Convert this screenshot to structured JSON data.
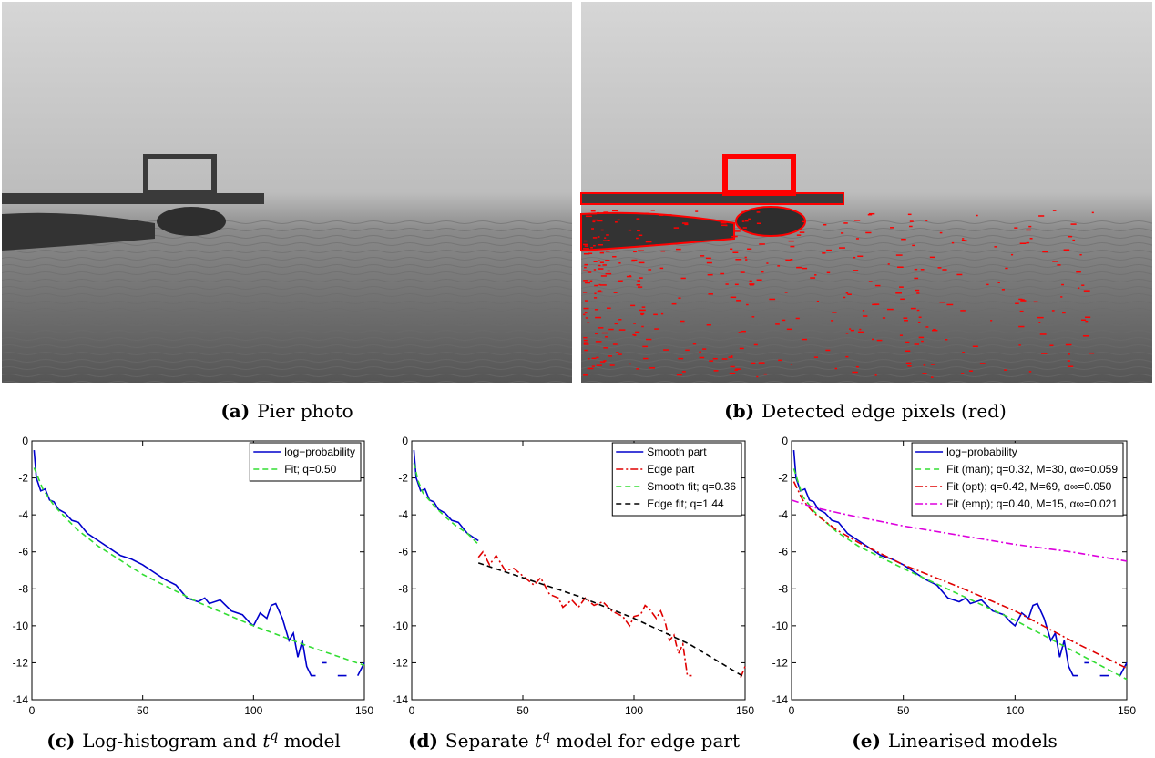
{
  "photos": [
    {
      "label": "(a)",
      "caption": "Pier photo"
    },
    {
      "label": "(b)",
      "caption": "Detected edge pixels (red)"
    }
  ],
  "chart_data": [
    {
      "type": "line",
      "label": "(c)",
      "caption": [
        {
          "text": "Log-histogram and "
        },
        {
          "text": "t",
          "style": "italic"
        },
        {
          "text": "q",
          "style": "sup"
        },
        {
          "text": " model"
        }
      ],
      "xlim": [
        0,
        150
      ],
      "xticks": [
        0,
        50,
        100,
        150
      ],
      "ylim": [
        -14,
        0
      ],
      "yticks": [
        0,
        -2,
        -4,
        -6,
        -8,
        -10,
        -12,
        -14
      ],
      "series": [
        {
          "name": "log−probability",
          "color": "#0000cc",
          "dash": "solid",
          "x": [
            1,
            2,
            4,
            6,
            8,
            10,
            12,
            15,
            18,
            21,
            25,
            30,
            35,
            40,
            45,
            50,
            55,
            60,
            65,
            70,
            75,
            78,
            80,
            85,
            90,
            95,
            98,
            100,
            103,
            106,
            108,
            110,
            113,
            116,
            118,
            120,
            122,
            124,
            126,
            128,
            130,
            131,
            133,
            135,
            138,
            142,
            144,
            147,
            150
          ],
          "values": [
            -0.5,
            -2.0,
            -2.7,
            -2.6,
            -3.2,
            -3.3,
            -3.7,
            -3.9,
            -4.3,
            -4.4,
            -5.0,
            -5.4,
            -5.8,
            -6.2,
            -6.4,
            -6.7,
            -7.1,
            -7.5,
            -7.8,
            -8.5,
            -8.7,
            -8.5,
            -8.8,
            -8.6,
            -9.2,
            -9.4,
            -9.8,
            -10.0,
            -9.3,
            -9.6,
            -8.9,
            -8.8,
            -9.6,
            -10.8,
            -10.4,
            -11.7,
            -10.8,
            -12.2,
            -12.7,
            -12.7,
            null,
            -12.0,
            -12.0,
            null,
            -12.7,
            -12.7,
            null,
            -12.7,
            -12.0
          ]
        },
        {
          "name": "Fit; q=0.50",
          "color": "#33dd33",
          "dash": "dashed",
          "x": [
            1,
            5,
            10,
            20,
            30,
            50,
            75,
            100,
            125,
            150
          ],
          "values": [
            -1.45,
            -2.62,
            -3.5,
            -4.75,
            -5.7,
            -7.22,
            -8.73,
            -10.0,
            -11.12,
            -12.14
          ]
        }
      ]
    },
    {
      "type": "line",
      "label": "(d)",
      "caption": [
        {
          "text": "Separate "
        },
        {
          "text": "t",
          "style": "italic"
        },
        {
          "text": "q",
          "style": "sup"
        },
        {
          "text": " model for edge part"
        }
      ],
      "xlim": [
        0,
        150
      ],
      "xticks": [
        0,
        50,
        100,
        150
      ],
      "ylim": [
        -14,
        0
      ],
      "yticks": [
        0,
        -2,
        -4,
        -6,
        -8,
        -10,
        -12,
        -14
      ],
      "series": [
        {
          "name": "Smooth part",
          "color": "#0000cc",
          "dash": "solid",
          "x": [
            1,
            2,
            4,
            6,
            8,
            10,
            12,
            15,
            18,
            21,
            25,
            30
          ],
          "values": [
            -0.5,
            -2.0,
            -2.7,
            -2.6,
            -3.2,
            -3.3,
            -3.7,
            -3.9,
            -4.3,
            -4.4,
            -5.0,
            -5.4
          ]
        },
        {
          "name": "Edge part",
          "color": "#e00000",
          "dash": "dashdot",
          "x": [
            30,
            32,
            35,
            38,
            42,
            46,
            50,
            55,
            58,
            62,
            66,
            68,
            72,
            75,
            78,
            82,
            86,
            90,
            95,
            98,
            100,
            103,
            105,
            107,
            110,
            112,
            114,
            116,
            118,
            120,
            122,
            124,
            126,
            128,
            148,
            150
          ],
          "values": [
            -6.3,
            -6.0,
            -6.7,
            -6.2,
            -7.0,
            -6.9,
            -7.3,
            -7.8,
            -7.4,
            -8.3,
            -8.5,
            -9.0,
            -8.6,
            -9.0,
            -8.5,
            -8.9,
            -8.7,
            -9.2,
            -9.5,
            -10.0,
            -9.5,
            -9.4,
            -8.9,
            -9.1,
            -9.6,
            -9.2,
            -9.8,
            -10.8,
            -10.5,
            -11.5,
            -11.0,
            -12.7,
            -12.7,
            null,
            -12.8,
            -12.2
          ]
        },
        {
          "name": "Smooth fit; q=0.36",
          "color": "#33dd33",
          "dash": "dashed",
          "x": [
            1,
            3,
            5,
            10,
            15,
            20,
            25,
            30
          ],
          "values": [
            -1.2,
            -2.2,
            -2.8,
            -3.5,
            -4.1,
            -4.6,
            -5.0,
            -5.6
          ]
        },
        {
          "name": "Edge fit; q=1.44",
          "color": "#000000",
          "dash": "dashed",
          "x": [
            30,
            50,
            75,
            100,
            125,
            150
          ],
          "values": [
            -6.6,
            -7.4,
            -8.4,
            -9.6,
            -11.0,
            -12.8
          ]
        }
      ]
    },
    {
      "type": "line",
      "label": "(e)",
      "caption": [
        {
          "text": "Linearised models"
        }
      ],
      "xlim": [
        0,
        150
      ],
      "xticks": [
        0,
        50,
        100,
        150
      ],
      "ylim": [
        -14,
        0
      ],
      "yticks": [
        0,
        -2,
        -4,
        -6,
        -8,
        -10,
        -12,
        -14
      ],
      "series": [
        {
          "name": "log−probability",
          "color": "#0000cc",
          "dash": "solid",
          "x": [
            1,
            2,
            4,
            6,
            8,
            10,
            12,
            15,
            18,
            21,
            25,
            30,
            35,
            40,
            45,
            50,
            55,
            60,
            65,
            70,
            75,
            78,
            80,
            85,
            90,
            95,
            98,
            100,
            103,
            106,
            108,
            110,
            113,
            116,
            118,
            120,
            122,
            124,
            126,
            128,
            130,
            131,
            133,
            135,
            138,
            142,
            144,
            147,
            150
          ],
          "values": [
            -0.5,
            -2.0,
            -2.7,
            -2.6,
            -3.2,
            -3.3,
            -3.7,
            -3.9,
            -4.3,
            -4.4,
            -5.0,
            -5.4,
            -5.8,
            -6.2,
            -6.4,
            -6.7,
            -7.1,
            -7.5,
            -7.8,
            -8.5,
            -8.7,
            -8.5,
            -8.8,
            -8.6,
            -9.2,
            -9.4,
            -9.8,
            -10.0,
            -9.3,
            -9.6,
            -8.9,
            -8.8,
            -9.6,
            -10.8,
            -10.4,
            -11.7,
            -10.8,
            -12.2,
            -12.7,
            -12.7,
            null,
            -12.0,
            -12.0,
            null,
            -12.7,
            -12.7,
            null,
            -12.7,
            -12.0
          ]
        },
        {
          "name": "Fit (man); q=0.32, M=30, α∞=0.059",
          "color": "#33dd33",
          "dash": "dashed",
          "x": [
            1,
            5,
            10,
            20,
            30,
            50,
            75,
            100,
            125,
            150
          ],
          "values": [
            -1.5,
            -3.0,
            -3.8,
            -4.9,
            -5.7,
            -6.9,
            -8.3,
            -9.7,
            -11.3,
            -12.9
          ]
        },
        {
          "name": "Fit (opt); q=0.42, M=69, α∞=0.050",
          "color": "#e00000",
          "dash": "dashdot",
          "x": [
            1,
            5,
            10,
            20,
            30,
            50,
            75,
            100,
            125,
            150
          ],
          "values": [
            -2.2,
            -3.2,
            -3.9,
            -4.8,
            -5.5,
            -6.7,
            -7.9,
            -9.2,
            -10.8,
            -12.3
          ]
        },
        {
          "name": "Fit (emp); q=0.40, M=15, α∞=0.021",
          "color": "#dd00dd",
          "dash": "dashdot",
          "x": [
            0,
            10,
            25,
            50,
            75,
            100,
            125,
            150
          ],
          "values": [
            -3.2,
            -3.6,
            -4.0,
            -4.6,
            -5.1,
            -5.6,
            -6.0,
            -6.5
          ]
        }
      ]
    }
  ]
}
